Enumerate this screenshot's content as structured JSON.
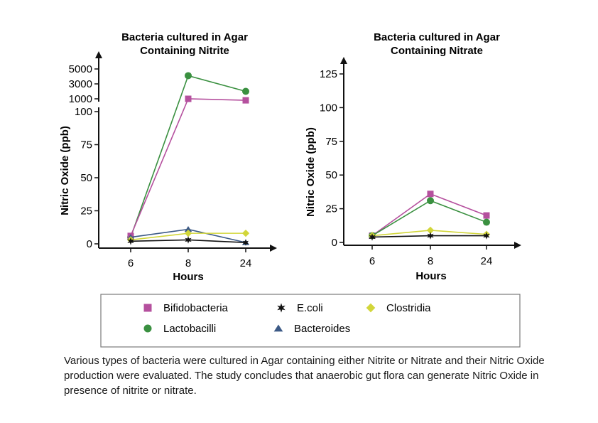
{
  "colors": {
    "Bifidobacteria": "#b5509e",
    "E.coli": "#111111",
    "Clostridia": "#d2d63a",
    "Lactobacilli": "#3a9040",
    "Bacteroides": "#3c5a86"
  },
  "markers": {
    "Bifidobacteria": "square",
    "E.coli": "star",
    "Clostridia": "diamond",
    "Lactobacilli": "circle",
    "Bacteroides": "triangle"
  },
  "chart_data": [
    {
      "type": "line",
      "title": "Bacteria cultured in Agar Containing Nitrite",
      "title_lines": [
        "Bacteria cultured in Agar",
        "Containing Nitrite"
      ],
      "xlabel": "Hours",
      "ylabel": "Nitric Oxide (ppb)",
      "categories": [
        "6",
        "8",
        "24"
      ],
      "y_axis": "broken",
      "lower_ylim": [
        0,
        100
      ],
      "lower_yticks": [
        0,
        25,
        50,
        75,
        100
      ],
      "upper_ylim": [
        1000,
        5000
      ],
      "upper_yticks": [
        1000,
        3000,
        5000
      ],
      "grid": false,
      "series": [
        {
          "name": "Lactobacilli",
          "values": [
            5,
            4100,
            2000
          ]
        },
        {
          "name": "Bifidobacteria",
          "values": [
            6,
            1000,
            800
          ]
        },
        {
          "name": "Bacteroides",
          "values": [
            5,
            11,
            1
          ]
        },
        {
          "name": "Clostridia",
          "values": [
            3,
            8,
            8
          ]
        },
        {
          "name": "E.coli",
          "values": [
            2,
            3,
            1
          ]
        }
      ]
    },
    {
      "type": "line",
      "title": "Bacteria cultured in Agar Containing Nitrate",
      "title_lines": [
        "Bacteria cultured in Agar",
        "Containing Nitrate"
      ],
      "xlabel": "Hours",
      "ylabel": "Nitric Oxide (ppb)",
      "categories": [
        "6",
        "8",
        "24"
      ],
      "ylim": [
        0,
        125
      ],
      "yticks": [
        0,
        25,
        50,
        75,
        100,
        125
      ],
      "grid": false,
      "series": [
        {
          "name": "Bifidobacteria",
          "values": [
            5,
            36,
            20
          ]
        },
        {
          "name": "Lactobacilli",
          "values": [
            5,
            31,
            15
          ]
        },
        {
          "name": "Clostridia",
          "values": [
            5,
            9,
            6
          ]
        },
        {
          "name": "E.coli",
          "values": [
            4,
            5,
            5
          ]
        }
      ]
    }
  ],
  "legend": {
    "placement": "bottom",
    "items": [
      "Bifidobacteria",
      "E.coli",
      "Clostridia",
      "Lactobacilli",
      "Bacteroides"
    ]
  },
  "caption": "Various types of bacteria were cultured in Agar containing either Nitrite or Nitrate and their Nitric Oxide production were evaluated. The study concludes that anaerobic gut flora can generate Nitric Oxide in presence of nitrite or nitrate."
}
